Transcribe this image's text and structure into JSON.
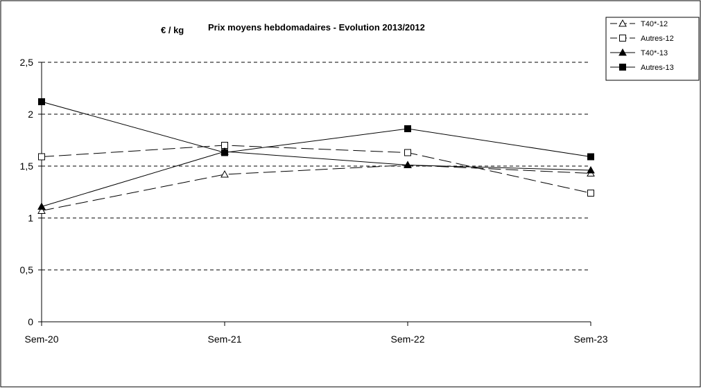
{
  "chart_data": {
    "type": "line",
    "title": "Prix moyens hebdomadaires - Evolution  2013/2012",
    "unit_label": "€ / kg",
    "categories": [
      "Sem-20",
      "Sem-21",
      "Sem-22",
      "Sem-23"
    ],
    "ylim": [
      0,
      2.5
    ],
    "y_ticks": [
      {
        "value": 0,
        "label": "0"
      },
      {
        "value": 0.5,
        "label": "0,5"
      },
      {
        "value": 1,
        "label": "1"
      },
      {
        "value": 1.5,
        "label": "1,5"
      },
      {
        "value": 2,
        "label": "2"
      },
      {
        "value": 2.5,
        "label": "2,5"
      }
    ],
    "grid": "horizontal-dashed",
    "legend_position": "top-right",
    "series": [
      {
        "name": "T40*-12",
        "values": [
          1.07,
          1.42,
          1.51,
          1.43
        ],
        "marker": "triangle-open",
        "dash": "long-dash"
      },
      {
        "name": "Autres-12",
        "values": [
          1.59,
          1.7,
          1.63,
          1.24
        ],
        "marker": "square-open",
        "dash": "long-dash"
      },
      {
        "name": "T40*-13",
        "values": [
          1.11,
          1.64,
          1.51,
          1.46
        ],
        "marker": "triangle-filled",
        "dash": "solid"
      },
      {
        "name": "Autres-13",
        "values": [
          2.12,
          1.63,
          1.86,
          1.59
        ],
        "marker": "square-filled",
        "dash": "solid"
      }
    ]
  }
}
